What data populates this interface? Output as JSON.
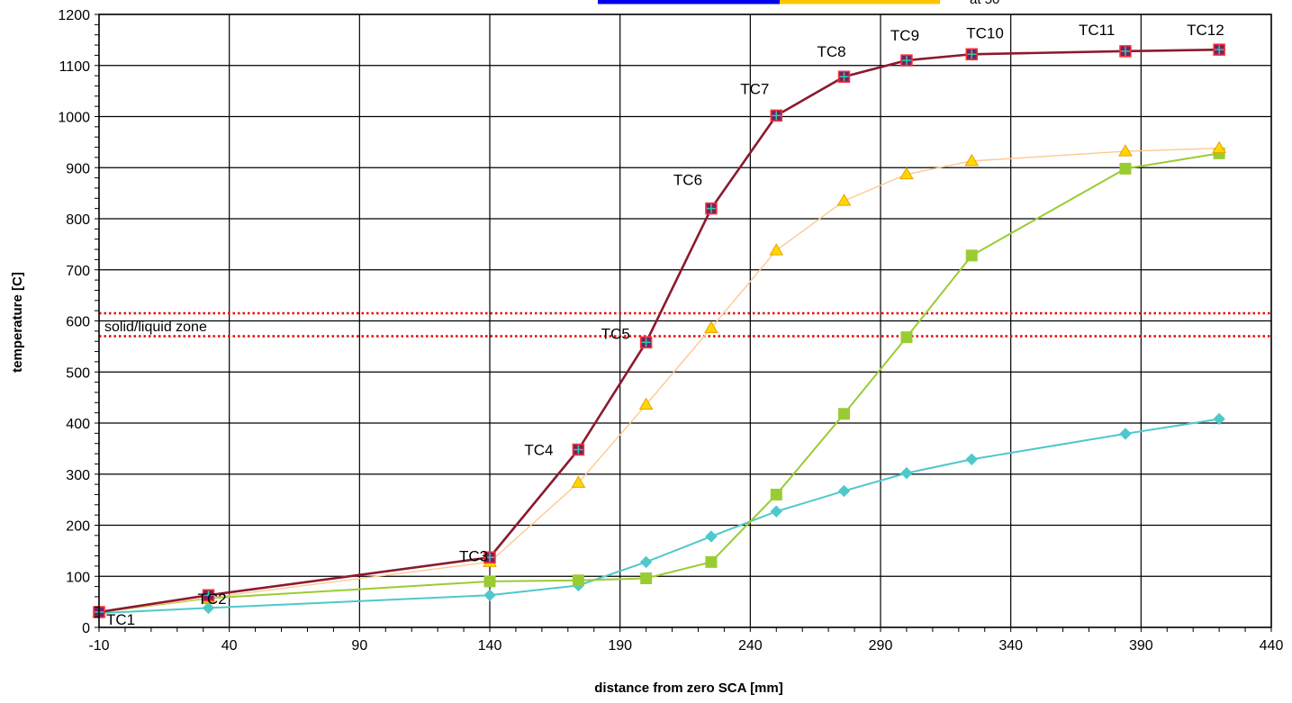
{
  "chart_data": {
    "type": "line",
    "xlabel": "distance from zero SCA [mm]",
    "ylabel": "temperature [C]",
    "xlim": [
      -10,
      440
    ],
    "ylim": [
      0,
      1200
    ],
    "x_ticks": [
      -10,
      40,
      90,
      140,
      190,
      240,
      290,
      340,
      390,
      440
    ],
    "y_ticks": [
      0,
      100,
      200,
      300,
      400,
      500,
      600,
      700,
      800,
      900,
      1000,
      1100,
      1200
    ],
    "grid": true,
    "legend_partial_text": "at 50",
    "colors": {
      "dark_red": "#8b1a2e",
      "orange": "#ffc890",
      "green": "#99cc33",
      "cyan": "#4fc8cc",
      "zone_line": "#ee0000",
      "legend_blue": "#0000ee",
      "legend_yellow": "#ffc400"
    },
    "series": [
      {
        "color_key": "dark_red",
        "marker": "square-plus",
        "x": [
          -10,
          32,
          140,
          174,
          200,
          225,
          250,
          276,
          300,
          325,
          384,
          420
        ],
        "y": [
          30,
          63,
          137,
          348,
          558,
          820,
          1002,
          1078,
          1110,
          1122,
          1128,
          1131
        ]
      },
      {
        "color_key": "orange",
        "marker": "triangle",
        "x": [
          -10,
          32,
          140,
          174,
          200,
          225,
          250,
          276,
          300,
          325,
          384,
          420
        ],
        "y": [
          30,
          58,
          128,
          283,
          436,
          586,
          738,
          835,
          887,
          913,
          932,
          938
        ]
      },
      {
        "color_key": "green",
        "marker": "square",
        "x": [
          -10,
          32,
          140,
          174,
          200,
          225,
          250,
          276,
          300,
          325,
          384,
          420
        ],
        "y": [
          30,
          57,
          90,
          92,
          96,
          128,
          260,
          418,
          568,
          728,
          898,
          928
        ]
      },
      {
        "color_key": "cyan",
        "marker": "diamond",
        "x": [
          -10,
          32,
          140,
          174,
          200,
          225,
          250,
          276,
          300,
          325,
          384,
          420
        ],
        "y": [
          28,
          38,
          63,
          82,
          128,
          178,
          227,
          267,
          302,
          329,
          379,
          408
        ]
      }
    ],
    "reference_lines": [
      {
        "y": 615,
        "style": "dotted"
      },
      {
        "y": 570,
        "style": "dotted"
      }
    ],
    "zone_label": {
      "text": "solid/liquid zone",
      "x": -10,
      "y": 590
    },
    "annotations": [
      {
        "text": "TC1",
        "x": -10,
        "y": 30
      },
      {
        "text": "TC2",
        "x": 32,
        "y": 63
      },
      {
        "text": "TC3",
        "x": 140,
        "y": 137
      },
      {
        "text": "TC4",
        "x": 174,
        "y": 348
      },
      {
        "text": "TC5",
        "x": 200,
        "y": 558
      },
      {
        "text": "TC6",
        "x": 225,
        "y": 820
      },
      {
        "text": "TC7",
        "x": 250,
        "y": 1002
      },
      {
        "text": "TC8",
        "x": 276,
        "y": 1078
      },
      {
        "text": "TC9",
        "x": 300,
        "y": 1110
      },
      {
        "text": "TC10",
        "x": 325,
        "y": 1122
      },
      {
        "text": "TC11",
        "x": 384,
        "y": 1128
      },
      {
        "text": "TC12",
        "x": 420,
        "y": 1131
      }
    ]
  }
}
